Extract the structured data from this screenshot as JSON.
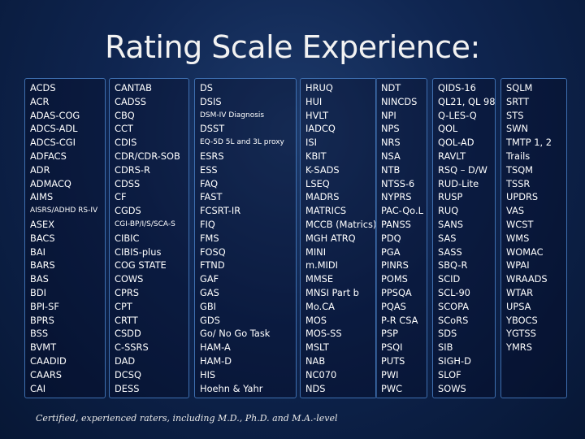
{
  "title": "Rating Scale Experience:",
  "columns": [
    {
      "items": [
        "ACDS",
        "ACR",
        "ADAS-COG",
        "ADCS-ADL",
        "ADCS-CGI",
        "ADFACS",
        "ADR",
        "ADMACQ",
        "AIMS",
        "AISRS/ADHD RS-IV",
        "ASEX",
        "BACS",
        "BAI",
        "BARS",
        "BAS",
        "BDI",
        "BPI-SF",
        "BPRS",
        "BSS",
        "BVMT",
        "CAADID",
        "CAARS",
        "CAI"
      ]
    },
    {
      "items": [
        "CANTAB",
        "CADSS",
        "CBQ",
        "CCT",
        "CDIS",
        "CDR/CDR-SOB",
        "CDRS-R",
        "CDSS",
        "CF",
        "CGDS",
        "CGI-BP/I/S/SCA-S",
        "CIBIC",
        "CIBIS-plus",
        "COG STATE",
        "COWS",
        "CPRS",
        "CPT",
        "CRTT",
        "CSDD",
        "C-SSRS",
        "DAD",
        "DCSQ",
        "DESS"
      ]
    },
    {
      "items": [
        "DS",
        "DSIS",
        "DSM-IV Diagnosis",
        "DSST",
        "EQ-5D 5L and 3L proxy",
        "ESRS",
        "ESS",
        "FAQ",
        "FAST",
        "FCSRT-IR",
        "FIQ",
        "FMS",
        "FOSQ",
        "FTND",
        "GAF",
        "GAS",
        "GBI",
        "GDS",
        "Go/ No Go Task",
        "HAM-A",
        "HAM-D",
        "HIS",
        "Hoehn & Yahr"
      ]
    },
    {
      "items": [
        "HRUQ",
        "HUI",
        "HVLT",
        "IADCQ",
        "ISI",
        "KBIT",
        "K-SADS",
        "LSEQ",
        "MADRS",
        "MATRICS",
        "MCCB (Matrics)",
        "MGH ATRQ",
        "MINI",
        "m.MIDI",
        "MMSE",
        "MNSI Part b",
        "Mo.CA",
        "MOS",
        "MOS-SS",
        "MSLT",
        "NAB",
        "NC070",
        "NDS"
      ]
    },
    {
      "items": [
        "NDT",
        "NINCDS",
        "NPI",
        "NPS",
        "NRS",
        "NSA",
        "NTB",
        "NTSS-6",
        "NYPRS",
        "PAC-Qo.L",
        "PANSS",
        "PDQ",
        "PGA",
        "PINRS",
        "POMS",
        "PPSQA",
        "PQAS",
        "P-R CSA",
        "PSP",
        "PSQI",
        "PUTS",
        "PWI",
        "PWC"
      ]
    },
    {
      "items": [
        "QIDS-16",
        "QL21, QL 98",
        "Q-LES-Q",
        "QOL",
        "QOL-AD",
        "RAVLT",
        "RSQ – D/W",
        "RUD-Lite",
        "RUSP",
        "RUQ",
        "SANS",
        "SAS",
        "SASS",
        "SBQ-R",
        "SCID",
        "SCL-90",
        "SCOPA",
        "SCoRS",
        "SDS",
        "SIB",
        "SIGH-D",
        "SLOF",
        "SOWS"
      ]
    },
    {
      "items": [
        "SQLM",
        "SRTT",
        "STS",
        "SWN",
        "TMTP 1, 2",
        "Trails",
        "TSQM",
        "TSSR",
        "UPDRS",
        "VAS",
        "WCST",
        "WMS",
        "WOMAC",
        "WPAI",
        "WRAADS",
        "WTAR",
        "UPSA",
        "YBOCS",
        "YGTSS",
        "YMRS"
      ]
    }
  ],
  "footer": "Certified, experienced raters, including M.D., Ph.D. and M.A.-level"
}
